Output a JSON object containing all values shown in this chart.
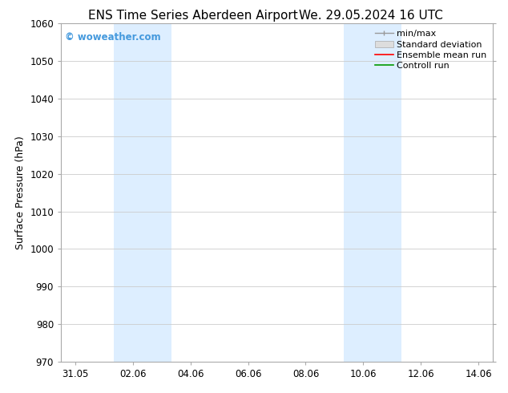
{
  "title_left": "ENS Time Series Aberdeen Airport",
  "title_right": "We. 29.05.2024 16 UTC",
  "ylabel": "Surface Pressure (hPa)",
  "ylim": [
    970,
    1060
  ],
  "yticks": [
    970,
    980,
    990,
    1000,
    1010,
    1020,
    1030,
    1040,
    1050,
    1060
  ],
  "xtick_labels": [
    "31.05",
    "02.06",
    "04.06",
    "06.06",
    "08.06",
    "10.06",
    "12.06",
    "14.06"
  ],
  "xtick_positions": [
    0,
    2,
    4,
    6,
    8,
    10,
    12,
    14
  ],
  "xlim": [
    -0.5,
    14.5
  ],
  "shaded_bands": [
    {
      "x_start": 1.4,
      "x_end": 2.6
    },
    {
      "x_start": 2.6,
      "x_end": 3.4
    },
    {
      "x_start": 9.4,
      "x_end": 10.6
    },
    {
      "x_start": 10.6,
      "x_end": 11.4
    }
  ],
  "shaded_color": "#ddeeff",
  "watermark_text": "© woweather.com",
  "watermark_color": "#4499dd",
  "legend_entries": [
    {
      "label": "min/max",
      "color": "#999999",
      "style": "errorbar"
    },
    {
      "label": "Standard deviation",
      "color": "#cccccc",
      "style": "patch"
    },
    {
      "label": "Ensemble mean run",
      "color": "#ff0000",
      "style": "line"
    },
    {
      "label": "Controll run",
      "color": "#009900",
      "style": "line"
    }
  ],
  "background_color": "#ffffff",
  "grid_color": "#cccccc",
  "spine_color": "#aaaaaa",
  "title_fontsize": 11,
  "axis_label_fontsize": 9,
  "tick_fontsize": 8.5,
  "legend_fontsize": 8
}
